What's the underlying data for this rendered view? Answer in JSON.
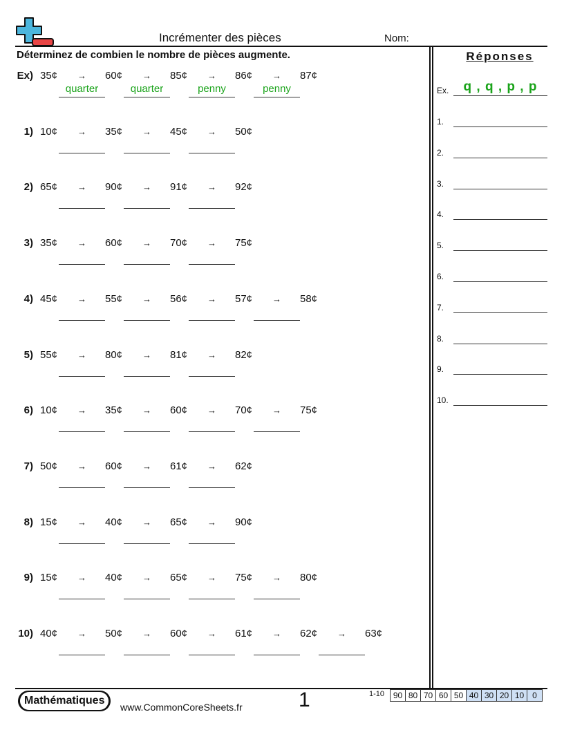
{
  "header": {
    "title": "Incrémenter des pièces",
    "name_label": "Nom:"
  },
  "instructions": "Déterminez de combien le nombre de pièces augmente.",
  "arrow": "→",
  "problems": [
    {
      "label": "Ex)",
      "values": [
        "35¢",
        "60¢",
        "85¢",
        "86¢",
        "87¢"
      ],
      "answers": [
        "quarter",
        "quarter",
        "penny",
        "penny"
      ]
    },
    {
      "label": "1)",
      "values": [
        "10¢",
        "35¢",
        "45¢",
        "50¢"
      ]
    },
    {
      "label": "2)",
      "values": [
        "65¢",
        "90¢",
        "91¢",
        "92¢"
      ]
    },
    {
      "label": "3)",
      "values": [
        "35¢",
        "60¢",
        "70¢",
        "75¢"
      ]
    },
    {
      "label": "4)",
      "values": [
        "45¢",
        "55¢",
        "56¢",
        "57¢",
        "58¢"
      ]
    },
    {
      "label": "5)",
      "values": [
        "55¢",
        "80¢",
        "81¢",
        "82¢"
      ]
    },
    {
      "label": "6)",
      "values": [
        "10¢",
        "35¢",
        "60¢",
        "70¢",
        "75¢"
      ]
    },
    {
      "label": "7)",
      "values": [
        "50¢",
        "60¢",
        "61¢",
        "62¢"
      ]
    },
    {
      "label": "8)",
      "values": [
        "15¢",
        "40¢",
        "65¢",
        "90¢"
      ]
    },
    {
      "label": "9)",
      "values": [
        "15¢",
        "40¢",
        "65¢",
        "75¢",
        "80¢"
      ]
    },
    {
      "label": "10)",
      "values": [
        "40¢",
        "50¢",
        "60¢",
        "61¢",
        "62¢",
        "63¢"
      ]
    }
  ],
  "answers_panel": {
    "title": "Réponses",
    "example_label": "Ex.",
    "example_answer": "q , q , p , p",
    "labels": [
      "1.",
      "2.",
      "3.",
      "4.",
      "5.",
      "6.",
      "7.",
      "8.",
      "9.",
      "10."
    ]
  },
  "footer": {
    "brand": "Mathématiques",
    "site": "www.CommonCoreSheets.fr",
    "page": "1",
    "score_label": "1-10",
    "scores": [
      "90",
      "80",
      "70",
      "60",
      "50",
      "40",
      "30",
      "20",
      "10",
      "0"
    ],
    "highlight_from": 5,
    "highlight_color": "#cfe0f5"
  },
  "colors": {
    "answer_green": "#1aa31a",
    "logo_blue": "#4cb6dd",
    "logo_red": "#e84545"
  }
}
